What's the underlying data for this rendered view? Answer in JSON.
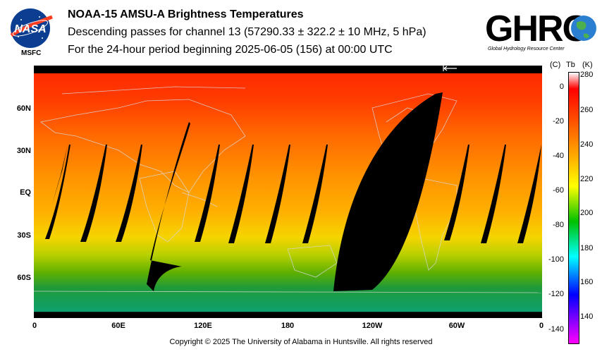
{
  "header": {
    "title": "NOAA-15 AMSU-A Brightness Temperatures",
    "subtitle": "Descending passes for channel 13 (57290.33 ± 322.2 ± 10 MHz, 5 hPa)",
    "period": "For the 24-hour period beginning 2025-06-05 (156) at 00:00 UTC"
  },
  "logos": {
    "nasa_text": "NASA",
    "msfc_text": "MSFC",
    "ghrc_text": "GHRC",
    "ghrc_subtitle": "Global Hydrology Resource Center"
  },
  "map": {
    "lat_labels": [
      "60N",
      "30N",
      "EQ",
      "30S",
      "60S"
    ],
    "lon_labels": [
      "0",
      "60E",
      "120E",
      "180",
      "120W",
      "60W",
      "0"
    ]
  },
  "colorbar": {
    "header_c": "(C)",
    "header_tb": "Tb",
    "header_k": "(K)",
    "celsius_ticks": [
      "0",
      "-20",
      "-40",
      "-60",
      "-80",
      "-100",
      "-120",
      "-140"
    ],
    "kelvin_ticks": [
      "280",
      "260",
      "240",
      "220",
      "200",
      "180",
      "160",
      "140"
    ],
    "colors": [
      "#ffffff",
      "#ff0000",
      "#ffa500",
      "#ffff00",
      "#00c000",
      "#00ffff",
      "#0000ff",
      "#ff00ff"
    ]
  },
  "footer": {
    "copyright": "Copyright © 2025 The University of Alabama in Huntsville.  All rights reserved"
  }
}
